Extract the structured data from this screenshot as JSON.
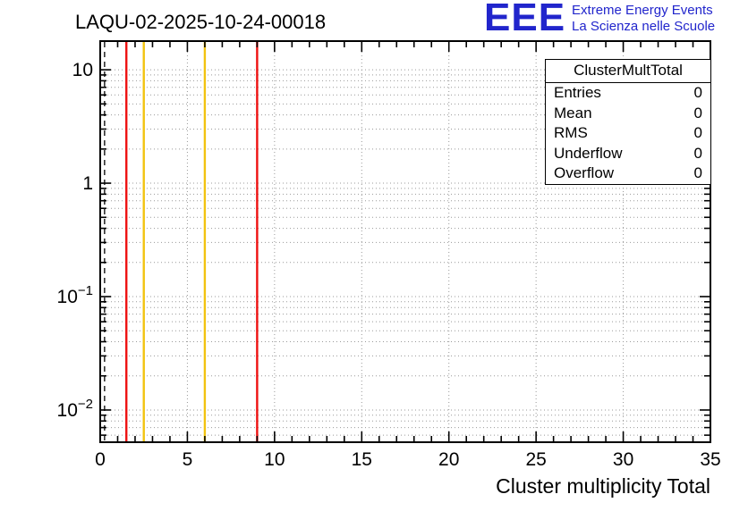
{
  "header": {
    "title": "LAQU-02-2025-10-24-00018",
    "logo": {
      "text": "EEE",
      "line1": "Extreme Energy Events",
      "line2": "La Scienza nelle Scuole",
      "color": "#2125cc"
    }
  },
  "stats_box": {
    "title": "ClusterMultTotal",
    "rows": [
      {
        "label": "Entries",
        "value": "0"
      },
      {
        "label": "Mean",
        "value": "0"
      },
      {
        "label": "RMS",
        "value": "0"
      },
      {
        "label": "Underflow",
        "value": "0"
      },
      {
        "label": "Overflow",
        "value": "0"
      }
    ]
  },
  "chart_data": {
    "type": "bar",
    "title": "LAQU-02-2025-10-24-00018",
    "xlabel": "Cluster multiplicity Total",
    "ylabel": "",
    "values": [],
    "entries": 0,
    "xlim": [
      0,
      35
    ],
    "ylim_log": [
      0.0052,
      17.9
    ],
    "y_scale": "log",
    "grid": true,
    "legend": "none",
    "x_major_ticks": [
      0,
      5,
      10,
      15,
      20,
      25,
      30,
      35
    ],
    "x_minor_step": 1,
    "y_major_ticks": [
      0.01,
      0.1,
      1,
      10
    ],
    "y_tick_labels": [
      {
        "value": 10,
        "mantissa": "10",
        "exponent": ""
      },
      {
        "value": 1,
        "mantissa": "1",
        "exponent": ""
      },
      {
        "value": 0.1,
        "mantissa": "10",
        "exponent": "−1"
      },
      {
        "value": 0.01,
        "mantissa": "10",
        "exponent": "−2"
      }
    ],
    "vertical_lines": [
      {
        "x": 0.25,
        "color": "#000000",
        "style": "dashed",
        "name": "zero-marker"
      },
      {
        "x": 1.5,
        "color": "#ee1111",
        "style": "solid",
        "name": "red-cut-low"
      },
      {
        "x": 2.5,
        "color": "#f2c30f",
        "style": "solid",
        "name": "yellow-cut-low"
      },
      {
        "x": 6,
        "color": "#f2c30f",
        "style": "solid",
        "name": "yellow-cut-high"
      },
      {
        "x": 9,
        "color": "#ee1111",
        "style": "solid",
        "name": "red-cut-high"
      }
    ]
  }
}
